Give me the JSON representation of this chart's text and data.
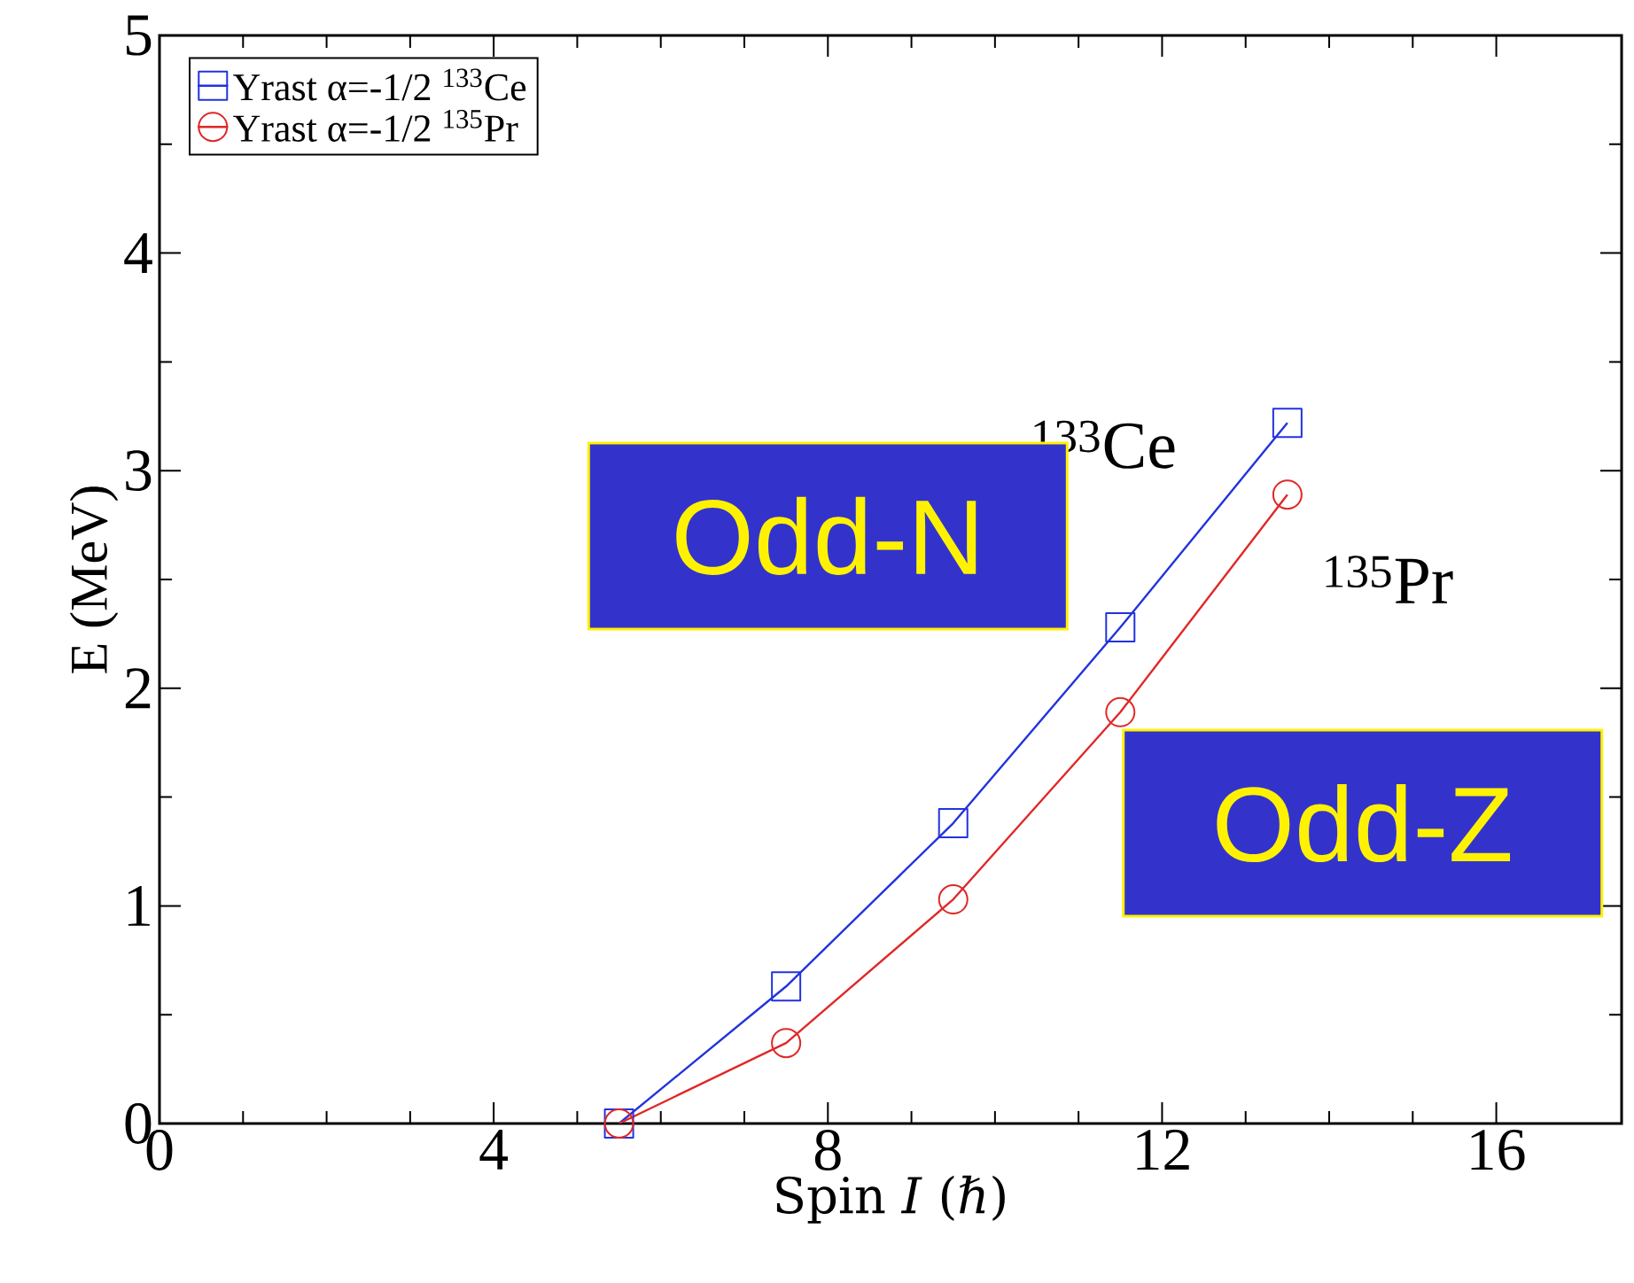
{
  "chart_data": {
    "type": "line",
    "xlabel": "Spin *I* (ℏ)",
    "ylabel": "E (MeV)",
    "xlim": [
      0,
      17.5
    ],
    "ylim": [
      0,
      5
    ],
    "xticks": [
      0,
      4,
      8,
      12,
      16
    ],
    "yticks": [
      0,
      1,
      2,
      3,
      4,
      5
    ],
    "x": [
      5.5,
      7.5,
      9.5,
      11.5,
      13.5
    ],
    "series": [
      {
        "name": "Yrast α=-1/2 $^{133}$Ce",
        "color": "#2233dd",
        "marker": "square",
        "values": [
          0,
          0.63,
          1.38,
          2.28,
          3.22
        ]
      },
      {
        "name": "Yrast α=-1/2 $^{135}$Pr",
        "color": "#e02828",
        "marker": "circle",
        "values": [
          0,
          0.37,
          1.03,
          1.89,
          2.89
        ]
      }
    ],
    "legend": "top left",
    "annotations": [
      "$^{133}$Ce",
      "$^{135}$Pr",
      "Odd-N",
      "Odd-Z"
    ]
  }
}
